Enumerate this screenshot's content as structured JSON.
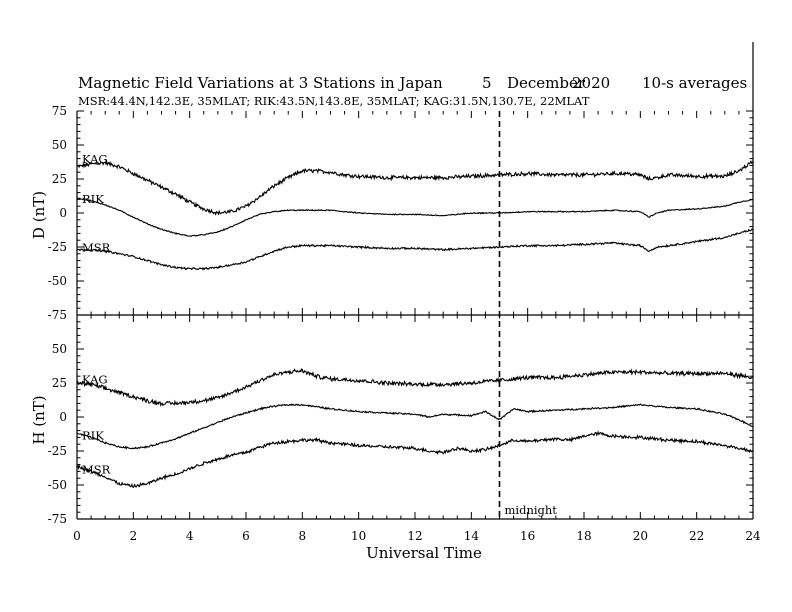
{
  "chart_data": [
    {
      "type": "line",
      "panel": "D",
      "title": "Magnetic Field Variations at 3 Stations in Japan",
      "date_day": "5",
      "date_month": "December",
      "date_year": "2020",
      "averaging": "10-s averages",
      "station_info": "MSR:44.4N,142.3E, 35MLAT;  RIK:43.5N,143.8E, 35MLAT;  KAG:31.5N,130.7E, 22MLAT",
      "ylabel": "D (nT)",
      "xlabel": "Universal Time",
      "ylim": [
        -75,
        75
      ],
      "xlim": [
        0,
        24
      ],
      "yticks": [
        "75",
        "50",
        "25",
        "0",
        "-25",
        "-50",
        "-75"
      ],
      "xticks": [
        "0",
        "2",
        "4",
        "6",
        "8",
        "10",
        "12",
        "14",
        "16",
        "18",
        "20",
        "22",
        "24"
      ],
      "vline_x": 15,
      "vline_label": "midnight",
      "series": [
        {
          "name": "KAG",
          "noise": 1.2,
          "points": [
            [
              0,
              34
            ],
            [
              0.5,
              36
            ],
            [
              1,
              37
            ],
            [
              1.5,
              34
            ],
            [
              2,
              29
            ],
            [
              2.5,
              24
            ],
            [
              3,
              19
            ],
            [
              3.5,
              14
            ],
            [
              4,
              8
            ],
            [
              4.5,
              3
            ],
            [
              5,
              0
            ],
            [
              5.5,
              1
            ],
            [
              6,
              5
            ],
            [
              6.5,
              12
            ],
            [
              7,
              20
            ],
            [
              7.5,
              26
            ],
            [
              8,
              31
            ],
            [
              8.5,
              31
            ],
            [
              9,
              30
            ],
            [
              9.5,
              28
            ],
            [
              10,
              27
            ],
            [
              11,
              26
            ],
            [
              12,
              26
            ],
            [
              13,
              26
            ],
            [
              14,
              27
            ],
            [
              15,
              28
            ],
            [
              16,
              29
            ],
            [
              17,
              28
            ],
            [
              18,
              28
            ],
            [
              19,
              29
            ],
            [
              19.5,
              29
            ],
            [
              20,
              28
            ],
            [
              20.3,
              25
            ],
            [
              20.6,
              26
            ],
            [
              21,
              28
            ],
            [
              22,
              27
            ],
            [
              23,
              27
            ],
            [
              23.5,
              31
            ],
            [
              24,
              38
            ]
          ]
        },
        {
          "name": "RIK",
          "noise": 0.35,
          "points": [
            [
              0,
              11
            ],
            [
              0.5,
              9
            ],
            [
              1,
              6
            ],
            [
              1.5,
              2
            ],
            [
              2,
              -3
            ],
            [
              2.5,
              -8
            ],
            [
              3,
              -12
            ],
            [
              3.5,
              -15
            ],
            [
              4,
              -17
            ],
            [
              4.5,
              -16
            ],
            [
              5,
              -14
            ],
            [
              5.5,
              -10
            ],
            [
              6,
              -5
            ],
            [
              6.5,
              -1
            ],
            [
              7,
              1
            ],
            [
              7.5,
              2
            ],
            [
              8,
              2
            ],
            [
              9,
              2
            ],
            [
              10,
              0
            ],
            [
              11,
              -1
            ],
            [
              12,
              -1
            ],
            [
              13,
              -2
            ],
            [
              14,
              0
            ],
            [
              15,
              0
            ],
            [
              16,
              1
            ],
            [
              17,
              1
            ],
            [
              18,
              1
            ],
            [
              19,
              2
            ],
            [
              20,
              1
            ],
            [
              20.3,
              -3
            ],
            [
              20.6,
              0
            ],
            [
              21,
              2
            ],
            [
              22,
              3
            ],
            [
              23,
              5
            ],
            [
              23.5,
              8
            ],
            [
              24,
              10
            ]
          ]
        },
        {
          "name": "MSR",
          "noise": 0.6,
          "points": [
            [
              0,
              -27
            ],
            [
              0.5,
              -27
            ],
            [
              1,
              -28
            ],
            [
              1.5,
              -30
            ],
            [
              2,
              -32
            ],
            [
              2.5,
              -35
            ],
            [
              3,
              -38
            ],
            [
              3.5,
              -40
            ],
            [
              4,
              -41
            ],
            [
              4.5,
              -41
            ],
            [
              5,
              -40
            ],
            [
              5.5,
              -38
            ],
            [
              6,
              -36
            ],
            [
              6.5,
              -32
            ],
            [
              7,
              -28
            ],
            [
              7.5,
              -25
            ],
            [
              8,
              -24
            ],
            [
              9,
              -24
            ],
            [
              10,
              -25
            ],
            [
              11,
              -26
            ],
            [
              12,
              -26
            ],
            [
              13,
              -27
            ],
            [
              14,
              -26
            ],
            [
              15,
              -25
            ],
            [
              16,
              -24
            ],
            [
              17,
              -24
            ],
            [
              18,
              -23
            ],
            [
              19,
              -22
            ],
            [
              20,
              -24
            ],
            [
              20.3,
              -28
            ],
            [
              20.6,
              -25
            ],
            [
              21,
              -24
            ],
            [
              22,
              -21
            ],
            [
              23,
              -18
            ],
            [
              23.5,
              -15
            ],
            [
              24,
              -12
            ]
          ]
        }
      ]
    },
    {
      "type": "line",
      "panel": "H",
      "ylabel": "H (nT)",
      "xlabel": "Universal Time",
      "ylim": [
        -75,
        75
      ],
      "xlim": [
        0,
        24
      ],
      "yticks": [
        "50",
        "25",
        "0",
        "-25",
        "-50",
        "-75"
      ],
      "xticks": [
        "0",
        "2",
        "4",
        "6",
        "8",
        "10",
        "12",
        "14",
        "16",
        "18",
        "20",
        "22",
        "24"
      ],
      "vline_x": 15,
      "vline_label": "midnight",
      "series": [
        {
          "name": "KAG",
          "noise": 1.3,
          "points": [
            [
              0,
              25
            ],
            [
              0.5,
              24
            ],
            [
              1,
              21
            ],
            [
              1.5,
              18
            ],
            [
              2,
              15
            ],
            [
              2.5,
              12
            ],
            [
              3,
              10
            ],
            [
              3.5,
              10
            ],
            [
              4,
              11
            ],
            [
              4.5,
              12
            ],
            [
              5,
              14
            ],
            [
              5.5,
              18
            ],
            [
              6,
              22
            ],
            [
              6.5,
              27
            ],
            [
              7,
              31
            ],
            [
              7.5,
              33
            ],
            [
              8,
              34
            ],
            [
              8.5,
              30
            ],
            [
              9,
              28
            ],
            [
              10,
              27
            ],
            [
              11,
              25
            ],
            [
              12,
              24
            ],
            [
              13,
              24
            ],
            [
              14,
              25
            ],
            [
              15,
              27
            ],
            [
              16,
              29
            ],
            [
              17,
              29
            ],
            [
              18,
              31
            ],
            [
              19,
              33
            ],
            [
              20,
              33
            ],
            [
              21,
              32
            ],
            [
              22,
              32
            ],
            [
              23,
              32
            ],
            [
              24,
              29
            ]
          ]
        },
        {
          "name": "RIK",
          "noise": 0.5,
          "points": [
            [
              0,
              -12
            ],
            [
              0.5,
              -15
            ],
            [
              1,
              -19
            ],
            [
              1.5,
              -22
            ],
            [
              2,
              -23
            ],
            [
              2.5,
              -22
            ],
            [
              3,
              -19
            ],
            [
              3.5,
              -16
            ],
            [
              4,
              -12
            ],
            [
              4.5,
              -8
            ],
            [
              5,
              -4
            ],
            [
              5.5,
              0
            ],
            [
              6,
              3
            ],
            [
              6.5,
              6
            ],
            [
              7,
              8
            ],
            [
              7.5,
              9
            ],
            [
              8,
              9
            ],
            [
              9,
              6
            ],
            [
              10,
              4
            ],
            [
              11,
              3
            ],
            [
              12,
              2
            ],
            [
              12.5,
              0
            ],
            [
              13,
              2
            ],
            [
              14,
              1
            ],
            [
              14.5,
              4
            ],
            [
              15,
              -2
            ],
            [
              15.5,
              6
            ],
            [
              16,
              4
            ],
            [
              17,
              5
            ],
            [
              18,
              6
            ],
            [
              19,
              7
            ],
            [
              20,
              9
            ],
            [
              21,
              7
            ],
            [
              22,
              6
            ],
            [
              23,
              2
            ],
            [
              23.5,
              -2
            ],
            [
              24,
              -7
            ]
          ]
        },
        {
          "name": "MSR",
          "noise": 1.0,
          "points": [
            [
              0,
              -36
            ],
            [
              0.5,
              -40
            ],
            [
              1,
              -44
            ],
            [
              1.5,
              -49
            ],
            [
              2,
              -51
            ],
            [
              2.5,
              -49
            ],
            [
              3,
              -45
            ],
            [
              3.5,
              -42
            ],
            [
              4,
              -38
            ],
            [
              4.5,
              -34
            ],
            [
              5,
              -31
            ],
            [
              5.5,
              -28
            ],
            [
              6,
              -26
            ],
            [
              6.5,
              -22
            ],
            [
              7,
              -19
            ],
            [
              7.5,
              -18
            ],
            [
              8,
              -17
            ],
            [
              8.5,
              -17
            ],
            [
              9,
              -19
            ],
            [
              10,
              -21
            ],
            [
              11,
              -22
            ],
            [
              12,
              -23
            ],
            [
              12.5,
              -25
            ],
            [
              13,
              -26
            ],
            [
              13.5,
              -23
            ],
            [
              14,
              -25
            ],
            [
              14.5,
              -24
            ],
            [
              15,
              -21
            ],
            [
              15.5,
              -17
            ],
            [
              16,
              -18
            ],
            [
              17,
              -16
            ],
            [
              17.5,
              -17
            ],
            [
              18,
              -14
            ],
            [
              18.5,
              -12
            ],
            [
              19,
              -14
            ],
            [
              20,
              -15
            ],
            [
              21,
              -17
            ],
            [
              22,
              -18
            ],
            [
              23,
              -21
            ],
            [
              23.5,
              -23
            ],
            [
              24,
              -25
            ]
          ]
        }
      ]
    }
  ]
}
